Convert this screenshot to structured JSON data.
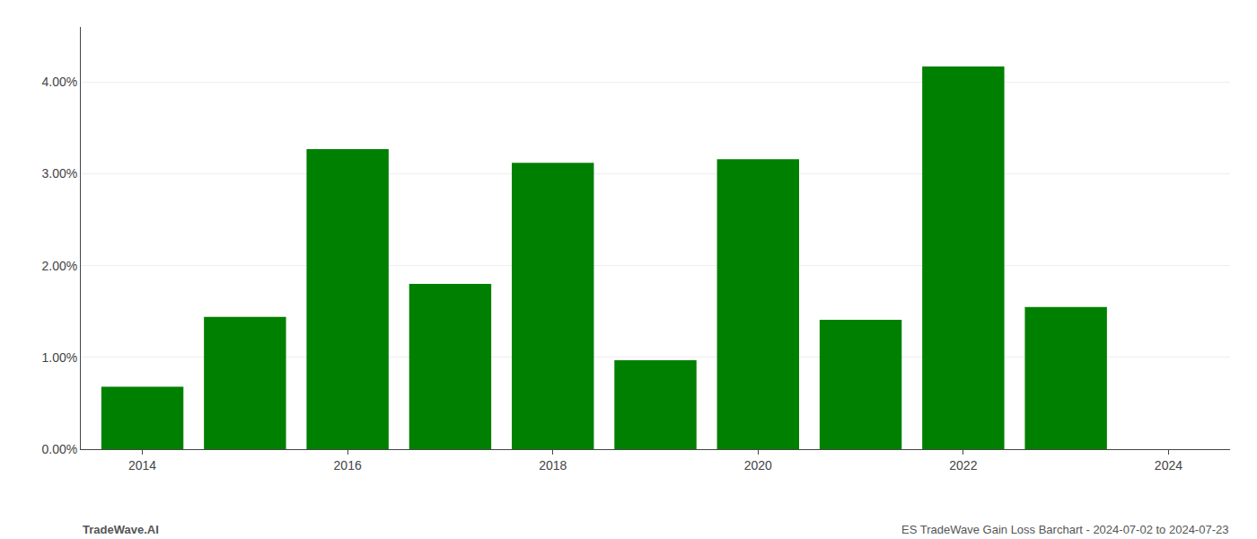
{
  "chart_data": {
    "type": "bar",
    "x": [
      2014,
      2015,
      2016,
      2017,
      2018,
      2019,
      2020,
      2021,
      2022,
      2023
    ],
    "values": [
      0.0068,
      0.0144,
      0.0327,
      0.018,
      0.0312,
      0.0097,
      0.0316,
      0.0141,
      0.0417,
      0.0155
    ],
    "color": "#008000",
    "xlim": [
      2013.4,
      2024.6
    ],
    "xticks": [
      2014,
      2016,
      2018,
      2020,
      2022,
      2024
    ],
    "ylim": [
      0,
      0.046
    ],
    "yticks": [
      {
        "value": 0.0,
        "label": "0.00%"
      },
      {
        "value": 0.01,
        "label": "1.00%"
      },
      {
        "value": 0.02,
        "label": "2.00%"
      },
      {
        "value": 0.03,
        "label": "3.00%"
      },
      {
        "value": 0.04,
        "label": "4.00%"
      }
    ],
    "grid": true,
    "annotations": [
      "TradeWave.AI",
      "ES TradeWave Gain Loss Barchart - 2024-07-02 to 2024-07-23"
    ]
  }
}
